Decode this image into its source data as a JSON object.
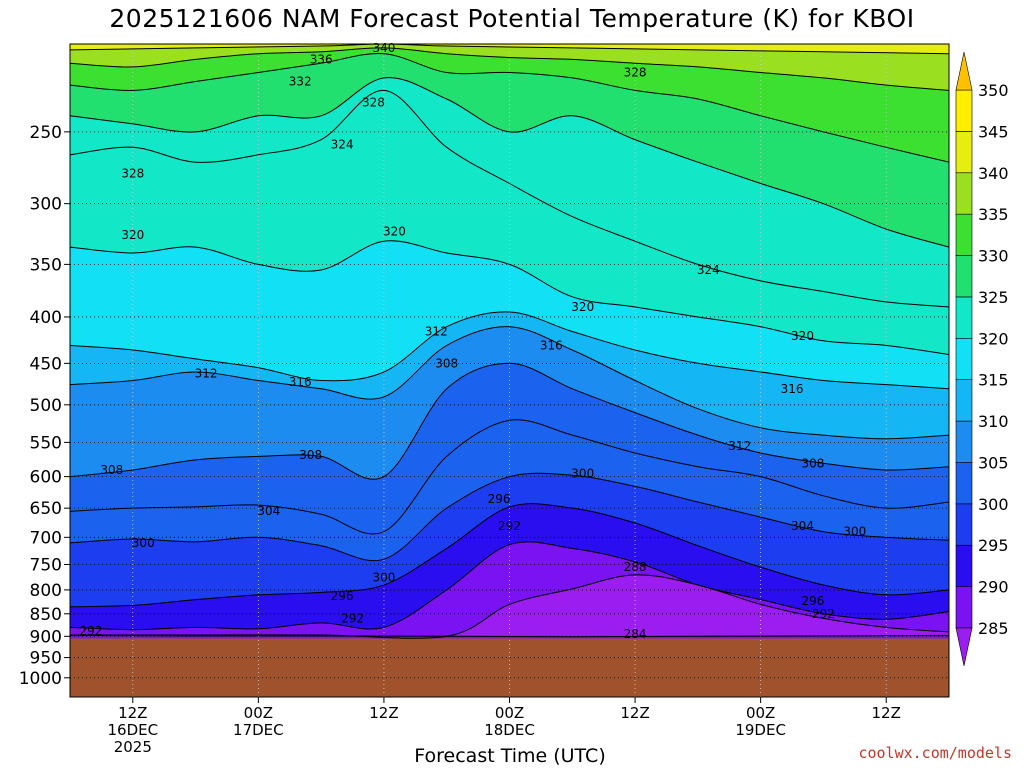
{
  "chart_data": {
    "type": "contour",
    "title": "2025121606 NAM Forecast Potential Temperature (K) for KBOI",
    "xlabel": "Forecast Time (UTC)",
    "ylabel": "",
    "y_ticks": [
      250,
      300,
      350,
      400,
      450,
      500,
      550,
      600,
      650,
      700,
      750,
      800,
      850,
      900,
      950,
      1000
    ],
    "y_range": [
      200,
      1050
    ],
    "y_scale": "log-pressure (hPa)",
    "x_ticks": [
      {
        "hour": 6,
        "label1": "12Z",
        "label2": "16DEC",
        "label3": "2025"
      },
      {
        "hour": 18,
        "label1": "00Z",
        "label2": "17DEC",
        "label3": ""
      },
      {
        "hour": 30,
        "label1": "12Z",
        "label2": "",
        "label3": ""
      },
      {
        "hour": 42,
        "label1": "00Z",
        "label2": "18DEC",
        "label3": ""
      },
      {
        "hour": 54,
        "label1": "12Z",
        "label2": "",
        "label3": ""
      },
      {
        "hour": 66,
        "label1": "00Z",
        "label2": "19DEC",
        "label3": ""
      },
      {
        "hour": 78,
        "label1": "12Z",
        "label2": "",
        "label3": ""
      }
    ],
    "x_range_hours": [
      0,
      84
    ],
    "colorbar": {
      "levels": [
        285,
        290,
        295,
        300,
        305,
        310,
        315,
        320,
        325,
        330,
        335,
        340,
        345,
        350
      ],
      "colors": [
        "#9b1df0",
        "#7a12f2",
        "#2a0ef0",
        "#1c3ef0",
        "#1b62ee",
        "#1c8cf0",
        "#14b6f4",
        "#12e0f5",
        "#12e8c8",
        "#22e070",
        "#3ce030",
        "#9be020",
        "#e6ee10",
        "#ffee00",
        "#ffc000"
      ]
    },
    "isentropes_K": [
      {
        "value": 284,
        "points": [
          [
            0,
            898
          ],
          [
            12,
            899
          ],
          [
            24,
            899
          ],
          [
            36,
            900
          ],
          [
            48,
            901
          ],
          [
            60,
            900
          ],
          [
            72,
            899
          ],
          [
            84,
            898
          ]
        ]
      },
      {
        "value": 288,
        "points": [
          [
            0,
            897
          ],
          [
            12,
            897
          ],
          [
            24,
            897
          ],
          [
            36,
            900
          ],
          [
            42,
            830
          ],
          [
            48,
            798
          ],
          [
            54,
            770
          ],
          [
            60,
            790
          ],
          [
            66,
            830
          ],
          [
            72,
            860
          ],
          [
            78,
            880
          ],
          [
            84,
            890
          ]
        ]
      },
      {
        "value": 292,
        "points": [
          [
            0,
            880
          ],
          [
            6,
            885
          ],
          [
            12,
            880
          ],
          [
            18,
            883
          ],
          [
            24,
            870
          ],
          [
            30,
            880
          ],
          [
            36,
            800
          ],
          [
            42,
            713
          ],
          [
            48,
            720
          ],
          [
            54,
            745
          ],
          [
            60,
            790
          ],
          [
            66,
            820
          ],
          [
            72,
            850
          ],
          [
            78,
            862
          ],
          [
            84,
            845
          ]
        ]
      },
      {
        "value": 296,
        "points": [
          [
            0,
            835
          ],
          [
            6,
            832
          ],
          [
            12,
            820
          ],
          [
            18,
            810
          ],
          [
            24,
            805
          ],
          [
            30,
            790
          ],
          [
            36,
            720
          ],
          [
            42,
            648
          ],
          [
            48,
            650
          ],
          [
            54,
            675
          ],
          [
            60,
            715
          ],
          [
            66,
            755
          ],
          [
            72,
            790
          ],
          [
            78,
            810
          ],
          [
            84,
            800
          ]
        ]
      },
      {
        "value": 300,
        "points": [
          [
            0,
            710
          ],
          [
            6,
            703
          ],
          [
            12,
            708
          ],
          [
            18,
            700
          ],
          [
            24,
            715
          ],
          [
            30,
            740
          ],
          [
            36,
            650
          ],
          [
            42,
            600
          ],
          [
            48,
            598
          ],
          [
            54,
            615
          ],
          [
            60,
            640
          ],
          [
            66,
            665
          ],
          [
            72,
            690
          ],
          [
            78,
            700
          ],
          [
            84,
            705
          ]
        ]
      },
      {
        "value": 304,
        "points": [
          [
            0,
            655
          ],
          [
            6,
            650
          ],
          [
            12,
            648
          ],
          [
            18,
            645
          ],
          [
            24,
            660
          ],
          [
            30,
            690
          ],
          [
            36,
            570
          ],
          [
            42,
            520
          ],
          [
            48,
            540
          ],
          [
            54,
            565
          ],
          [
            60,
            585
          ],
          [
            66,
            600
          ],
          [
            72,
            630
          ],
          [
            78,
            650
          ],
          [
            84,
            640
          ]
        ]
      },
      {
        "value": 308,
        "points": [
          [
            0,
            600
          ],
          [
            6,
            590
          ],
          [
            12,
            575
          ],
          [
            18,
            570
          ],
          [
            24,
            570
          ],
          [
            30,
            600
          ],
          [
            36,
            480
          ],
          [
            42,
            450
          ],
          [
            48,
            480
          ],
          [
            54,
            510
          ],
          [
            60,
            540
          ],
          [
            66,
            565
          ],
          [
            72,
            580
          ],
          [
            78,
            590
          ],
          [
            84,
            585
          ]
        ]
      },
      {
        "value": 312,
        "points": [
          [
            0,
            475
          ],
          [
            6,
            470
          ],
          [
            12,
            460
          ],
          [
            18,
            470
          ],
          [
            24,
            480
          ],
          [
            30,
            490
          ],
          [
            36,
            430
          ],
          [
            42,
            410
          ],
          [
            48,
            435
          ],
          [
            54,
            470
          ],
          [
            60,
            505
          ],
          [
            66,
            530
          ],
          [
            72,
            540
          ],
          [
            78,
            545
          ],
          [
            84,
            540
          ]
        ]
      },
      {
        "value": 316,
        "points": [
          [
            0,
            430
          ],
          [
            6,
            435
          ],
          [
            12,
            445
          ],
          [
            18,
            455
          ],
          [
            24,
            470
          ],
          [
            30,
            460
          ],
          [
            36,
            410
          ],
          [
            42,
            395
          ],
          [
            48,
            415
          ],
          [
            54,
            435
          ],
          [
            60,
            450
          ],
          [
            66,
            460
          ],
          [
            72,
            470
          ],
          [
            78,
            475
          ],
          [
            84,
            480
          ]
        ]
      },
      {
        "value": 320,
        "points": [
          [
            0,
            335
          ],
          [
            6,
            340
          ],
          [
            12,
            335
          ],
          [
            18,
            350
          ],
          [
            24,
            355
          ],
          [
            30,
            330
          ],
          [
            36,
            340
          ],
          [
            42,
            350
          ],
          [
            48,
            380
          ],
          [
            54,
            390
          ],
          [
            60,
            400
          ],
          [
            66,
            410
          ],
          [
            72,
            425
          ],
          [
            78,
            430
          ],
          [
            84,
            440
          ]
        ]
      },
      {
        "value": 324,
        "points": [
          [
            0,
            265
          ],
          [
            6,
            260
          ],
          [
            12,
            270
          ],
          [
            18,
            265
          ],
          [
            24,
            255
          ],
          [
            30,
            225
          ],
          [
            36,
            260
          ],
          [
            42,
            285
          ],
          [
            48,
            310
          ],
          [
            54,
            330
          ],
          [
            60,
            350
          ],
          [
            66,
            365
          ],
          [
            72,
            375
          ],
          [
            78,
            385
          ],
          [
            84,
            390
          ]
        ]
      },
      {
        "value": 328,
        "points": [
          [
            0,
            240
          ],
          [
            6,
            245
          ],
          [
            12,
            250
          ],
          [
            18,
            240
          ],
          [
            24,
            240
          ],
          [
            30,
            218
          ],
          [
            36,
            230
          ],
          [
            42,
            250
          ],
          [
            48,
            240
          ],
          [
            54,
            255
          ],
          [
            60,
            270
          ],
          [
            66,
            285
          ],
          [
            72,
            300
          ],
          [
            78,
            320
          ],
          [
            84,
            335
          ]
        ]
      },
      {
        "value": 332,
        "points": [
          [
            0,
            222
          ],
          [
            6,
            225
          ],
          [
            12,
            220
          ],
          [
            18,
            215
          ],
          [
            24,
            210
          ],
          [
            30,
            205
          ],
          [
            36,
            215
          ],
          [
            42,
            215
          ],
          [
            48,
            218
          ],
          [
            54,
            225
          ],
          [
            60,
            230
          ],
          [
            66,
            240
          ],
          [
            72,
            250
          ],
          [
            78,
            260
          ],
          [
            84,
            270
          ]
        ]
      },
      {
        "value": 336,
        "points": [
          [
            0,
            210
          ],
          [
            6,
            212
          ],
          [
            12,
            208
          ],
          [
            18,
            205
          ],
          [
            24,
            204
          ],
          [
            30,
            202
          ],
          [
            36,
            205
          ],
          [
            42,
            207
          ],
          [
            48,
            208
          ],
          [
            54,
            210
          ],
          [
            60,
            212
          ],
          [
            66,
            215
          ],
          [
            72,
            218
          ],
          [
            78,
            222
          ],
          [
            84,
            225
          ]
        ]
      },
      {
        "value": 340,
        "points": [
          [
            0,
            203
          ],
          [
            12,
            202
          ],
          [
            24,
            201
          ],
          [
            30,
            200
          ],
          [
            36,
            201
          ],
          [
            48,
            202
          ],
          [
            60,
            203
          ],
          [
            72,
            204
          ],
          [
            84,
            205
          ]
        ]
      }
    ],
    "contour_labels": [
      {
        "text": "336",
        "x": 24,
        "y": 208
      },
      {
        "text": "340",
        "x": 30,
        "y": 202
      },
      {
        "text": "332",
        "x": 22,
        "y": 220
      },
      {
        "text": "328",
        "x": 29,
        "y": 232
      },
      {
        "text": "328",
        "x": 54,
        "y": 215
      },
      {
        "text": "324",
        "x": 26,
        "y": 258
      },
      {
        "text": "328",
        "x": 6,
        "y": 278
      },
      {
        "text": "320",
        "x": 6,
        "y": 325
      },
      {
        "text": "320",
        "x": 31,
        "y": 322
      },
      {
        "text": "324",
        "x": 61,
        "y": 355
      },
      {
        "text": "320",
        "x": 49,
        "y": 390
      },
      {
        "text": "320",
        "x": 70,
        "y": 420
      },
      {
        "text": "312",
        "x": 35,
        "y": 415
      },
      {
        "text": "316",
        "x": 46,
        "y": 430
      },
      {
        "text": "312",
        "x": 13,
        "y": 462
      },
      {
        "text": "316",
        "x": 22,
        "y": 472
      },
      {
        "text": "308",
        "x": 36,
        "y": 450
      },
      {
        "text": "316",
        "x": 69,
        "y": 480
      },
      {
        "text": "312",
        "x": 64,
        "y": 555
      },
      {
        "text": "308",
        "x": 23,
        "y": 568
      },
      {
        "text": "308",
        "x": 4,
        "y": 590
      },
      {
        "text": "308",
        "x": 71,
        "y": 580
      },
      {
        "text": "300",
        "x": 49,
        "y": 595
      },
      {
        "text": "296",
        "x": 41,
        "y": 635
      },
      {
        "text": "304",
        "x": 19,
        "y": 655
      },
      {
        "text": "292",
        "x": 42,
        "y": 680
      },
      {
        "text": "304",
        "x": 70,
        "y": 680
      },
      {
        "text": "300",
        "x": 75,
        "y": 690
      },
      {
        "text": "300",
        "x": 7,
        "y": 710
      },
      {
        "text": "288",
        "x": 54,
        "y": 755
      },
      {
        "text": "300",
        "x": 30,
        "y": 775
      },
      {
        "text": "296",
        "x": 26,
        "y": 812
      },
      {
        "text": "296",
        "x": 71,
        "y": 823
      },
      {
        "text": "292",
        "x": 27,
        "y": 860
      },
      {
        "text": "292",
        "x": 72,
        "y": 850
      },
      {
        "text": "292",
        "x": 2,
        "y": 888
      },
      {
        "text": "284",
        "x": 54,
        "y": 895
      }
    ],
    "surface_pressure_hPa": 905,
    "grid": true,
    "legend": "right colorbar"
  },
  "credit": "coolwx.com/models"
}
